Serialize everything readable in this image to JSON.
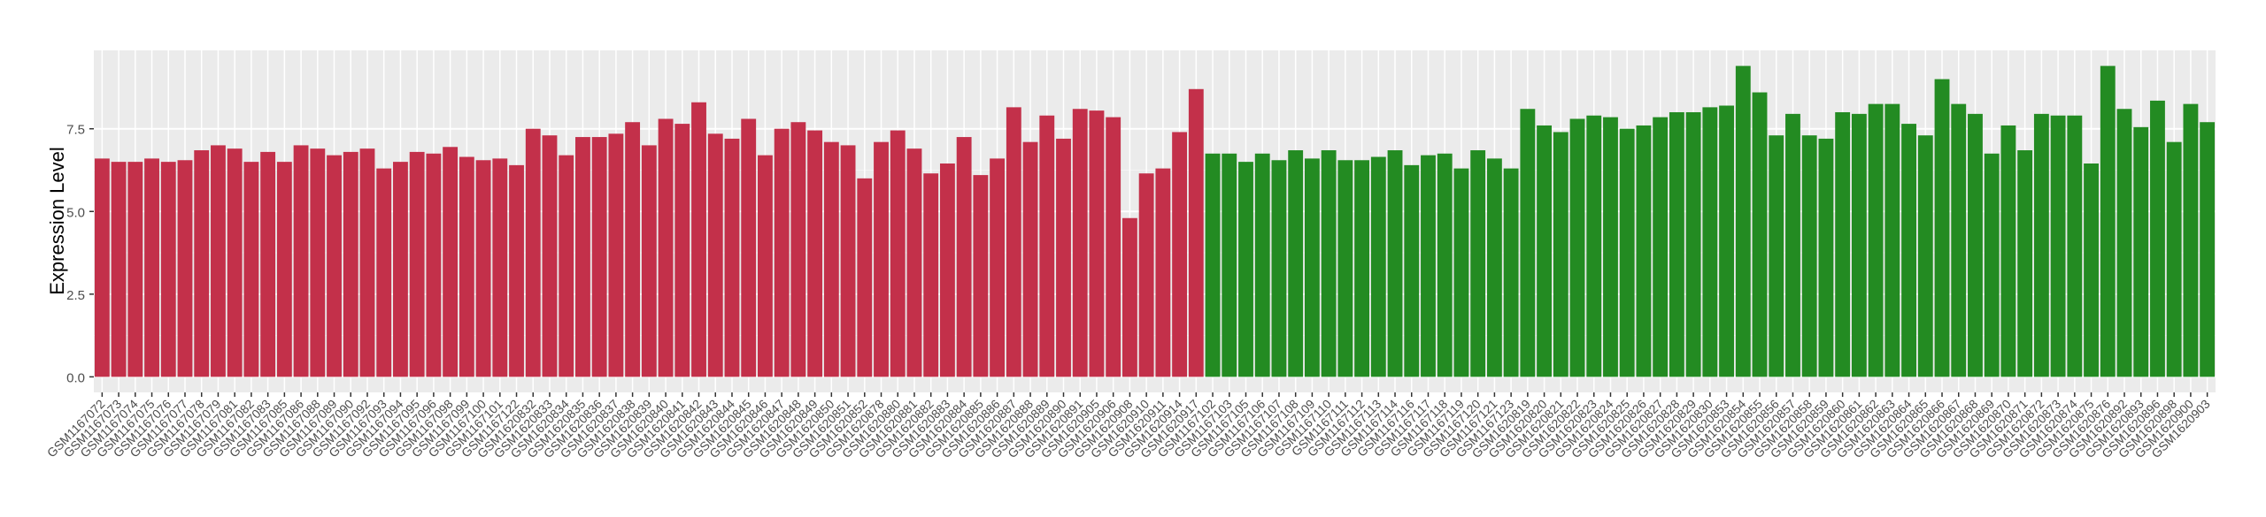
{
  "chart_data": {
    "type": "bar",
    "y_label": "Expression Level",
    "categories": [
      "GSM1167072",
      "GSM1167073",
      "GSM1167074",
      "GSM1167075",
      "GSM1167076",
      "GSM1167077",
      "GSM1167078",
      "GSM1167079",
      "GSM1167081",
      "GSM1167082",
      "GSM1167083",
      "GSM1167085",
      "GSM1167086",
      "GSM1167088",
      "GSM1167089",
      "GSM1167090",
      "GSM1167092",
      "GSM1167093",
      "GSM1167094",
      "GSM1167095",
      "GSM1167096",
      "GSM1167098",
      "GSM1167099",
      "GSM1167100",
      "GSM1167101",
      "GSM1167122",
      "GSM1620832",
      "GSM1620833",
      "GSM1620834",
      "GSM1620835",
      "GSM1620836",
      "GSM1620837",
      "GSM1620838",
      "GSM1620839",
      "GSM1620840",
      "GSM1620841",
      "GSM1620842",
      "GSM1620843",
      "GSM1620844",
      "GSM1620845",
      "GSM1620846",
      "GSM1620847",
      "GSM1620848",
      "GSM1620849",
      "GSM1620850",
      "GSM1620851",
      "GSM1620852",
      "GSM1620878",
      "GSM1620880",
      "GSM1620881",
      "GSM1620882",
      "GSM1620883",
      "GSM1620884",
      "GSM1620885",
      "GSM1620886",
      "GSM1620887",
      "GSM1620888",
      "GSM1620889",
      "GSM1620890",
      "GSM1620891",
      "GSM1620905",
      "GSM1620906",
      "GSM1620908",
      "GSM1620910",
      "GSM1620911",
      "GSM1620914",
      "GSM1620917",
      "GSM1167102",
      "GSM1167103",
      "GSM1167105",
      "GSM1167106",
      "GSM1167107",
      "GSM1167108",
      "GSM1167109",
      "GSM1167110",
      "GSM1167111",
      "GSM1167112",
      "GSM1167113",
      "GSM1167114",
      "GSM1167116",
      "GSM1167117",
      "GSM1167118",
      "GSM1167119",
      "GSM1167120",
      "GSM1167121",
      "GSM1167123",
      "GSM1620819",
      "GSM1620820",
      "GSM1620821",
      "GSM1620822",
      "GSM1620823",
      "GSM1620824",
      "GSM1620825",
      "GSM1620826",
      "GSM1620827",
      "GSM1620828",
      "GSM1620829",
      "GSM1620830",
      "GSM1620853",
      "GSM1620854",
      "GSM1620855",
      "GSM1620856",
      "GSM1620857",
      "GSM1620858",
      "GSM1620859",
      "GSM1620860",
      "GSM1620861",
      "GSM1620862",
      "GSM1620863",
      "GSM1620864",
      "GSM1620865",
      "GSM1620866",
      "GSM1620867",
      "GSM1620868",
      "GSM1620869",
      "GSM1620870",
      "GSM1620871",
      "GSM1620872",
      "GSM1620873",
      "GSM1620874",
      "GSM1620875",
      "GSM1620876",
      "GSM1620892",
      "GSM1620893",
      "GSM1620896",
      "GSM1620898",
      "GSM1620900",
      "GSM1620903"
    ],
    "series": [
      {
        "color": "#c3304a",
        "values": [
          6.6,
          6.5,
          6.5,
          6.6,
          6.5,
          6.55,
          6.85,
          7.0,
          6.9,
          6.5,
          6.8,
          6.5,
          7.0,
          6.9,
          6.7,
          6.8,
          6.9,
          6.3,
          6.5,
          6.8,
          6.75,
          6.95,
          6.65,
          6.55,
          6.6,
          6.4,
          7.5,
          7.3,
          6.7,
          7.25,
          7.25,
          7.35,
          7.7,
          7.0,
          7.8,
          7.65,
          8.3,
          7.35,
          7.2,
          7.8,
          6.7,
          7.5,
          7.7,
          7.45,
          7.1,
          7.0,
          6.0,
          7.1,
          7.45,
          6.9,
          6.15,
          6.45,
          7.25,
          6.1,
          6.6,
          8.15,
          7.1,
          7.9,
          7.2,
          8.1,
          8.05,
          7.85,
          4.8,
          6.15,
          6.3,
          7.4,
          8.7,
          null,
          null,
          null,
          null,
          null,
          null,
          null,
          null,
          null,
          null,
          null,
          null,
          null,
          null,
          null,
          null,
          null,
          null,
          null,
          null,
          null,
          null,
          null,
          null,
          null,
          null,
          null,
          null,
          null,
          null,
          null,
          null,
          null,
          null,
          null,
          null,
          null,
          null,
          null,
          null,
          null,
          null,
          null,
          null,
          null,
          null,
          null,
          null,
          null,
          null,
          null,
          null,
          null,
          null,
          null,
          null,
          null,
          null,
          null,
          null,
          null
        ]
      },
      {
        "color": "#238b22",
        "values": [
          null,
          null,
          null,
          null,
          null,
          null,
          null,
          null,
          null,
          null,
          null,
          null,
          null,
          null,
          null,
          null,
          null,
          null,
          null,
          null,
          null,
          null,
          null,
          null,
          null,
          null,
          null,
          null,
          null,
          null,
          null,
          null,
          null,
          null,
          null,
          null,
          null,
          null,
          null,
          null,
          null,
          null,
          null,
          null,
          null,
          null,
          null,
          null,
          null,
          null,
          null,
          null,
          null,
          null,
          null,
          null,
          null,
          null,
          null,
          null,
          null,
          null,
          null,
          null,
          null,
          null,
          null,
          6.75,
          6.75,
          6.5,
          6.75,
          6.55,
          6.85,
          6.6,
          6.85,
          6.55,
          6.55,
          6.65,
          6.85,
          6.4,
          6.7,
          6.75,
          6.3,
          6.85,
          6.6,
          6.3,
          8.1,
          7.6,
          7.4,
          7.8,
          7.9,
          7.85,
          7.5,
          7.6,
          7.85,
          8.0,
          8.0,
          8.15,
          8.2,
          9.4,
          8.6,
          7.3,
          7.95,
          7.3,
          7.2,
          8.0,
          7.95,
          8.25,
          8.25,
          7.65,
          7.3,
          9.0,
          8.25,
          7.95,
          6.75,
          7.6,
          6.85,
          7.95,
          7.9,
          7.9,
          6.45,
          9.4,
          8.1,
          7.55,
          8.35,
          7.1,
          8.25,
          7.7
        ]
      }
    ],
    "ylim": [
      -0.47,
      9.87
    ],
    "yticks": [
      {
        "value": 0,
        "label": "0.0"
      },
      {
        "value": 2.5,
        "label": "2.5"
      },
      {
        "value": 5,
        "label": "5.0"
      },
      {
        "value": 7.5,
        "label": "7.5"
      }
    ],
    "grid": true
  }
}
